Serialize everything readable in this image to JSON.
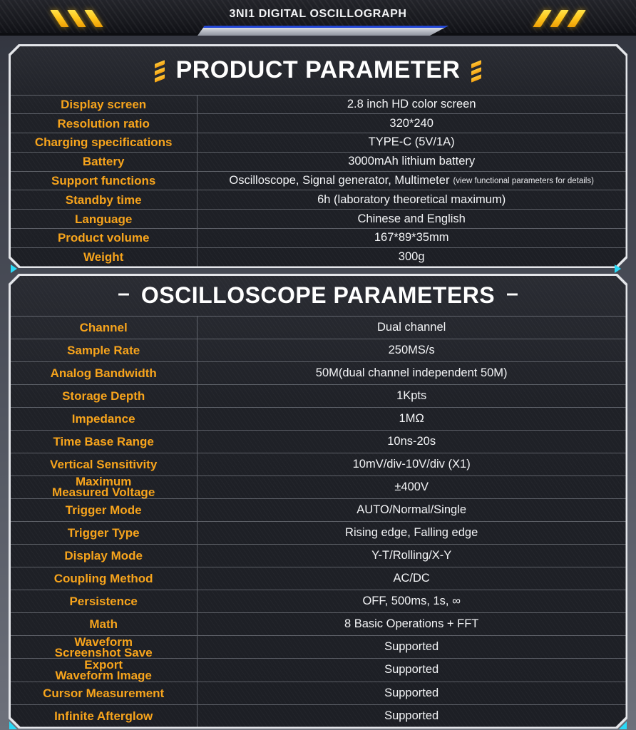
{
  "header": {
    "title": "3NI1 DIGITAL OSCILLOGRAPH"
  },
  "decor": {
    "dash": "–",
    "accent_color": "#29d9f7",
    "label_color": "#f7a41c",
    "hazard_color": "#ffc81e"
  },
  "product_table": {
    "title": "PRODUCT PARAMETER",
    "rows": [
      {
        "label": "Display screen",
        "value": "2.8 inch HD color screen"
      },
      {
        "label": "Resolution ratio",
        "value": "320*240"
      },
      {
        "label": "Charging specifications",
        "value": "TYPE-C (5V/1A)"
      },
      {
        "label": "Battery",
        "value": "3000mAh lithium battery"
      },
      {
        "label": "Support functions",
        "value": "Oscilloscope, Signal generator, Multimeter",
        "note": "(view functional parameters for details)"
      },
      {
        "label": "Standby time",
        "value": "6h (laboratory theoretical maximum)"
      },
      {
        "label": "Language",
        "value": "Chinese and English"
      },
      {
        "label": "Product volume",
        "value": "167*89*35mm"
      },
      {
        "label": "Weight",
        "value": "300g"
      }
    ]
  },
  "oscilloscope_table": {
    "title": "OSCILLOSCOPE PARAMETERS",
    "rows": [
      {
        "label": "Channel",
        "value": "Dual channel"
      },
      {
        "label": "Sample Rate",
        "value": "250MS/s"
      },
      {
        "label": "Analog Bandwidth",
        "value": "50M(dual channel independent 50M)"
      },
      {
        "label": "Storage Depth",
        "value": "1Kpts"
      },
      {
        "label": "Impedance",
        "value": "1MΩ"
      },
      {
        "label": "Time Base Range",
        "value": "10ns-20s"
      },
      {
        "label": "Vertical Sensitivity",
        "value": "10mV/div-10V/div (X1)"
      },
      {
        "label": "Maximum\nMeasured Voltage",
        "value": "±400V"
      },
      {
        "label": "Trigger Mode",
        "value": "AUTO/Normal/Single"
      },
      {
        "label": "Trigger Type",
        "value": "Rising edge, Falling edge"
      },
      {
        "label": "Display Mode",
        "value": "Y-T/Rolling/X-Y"
      },
      {
        "label": "Coupling Method",
        "value": "AC/DC"
      },
      {
        "label": "Persistence",
        "value": "OFF, 500ms, 1s, ∞"
      },
      {
        "label": "Math",
        "value": "8 Basic Operations + FFT"
      },
      {
        "label": "Waveform\nScreenshot Save",
        "value": "Supported"
      },
      {
        "label": "Export\nWaveform Image",
        "value": "Supported"
      },
      {
        "label": "Cursor Measurement",
        "value": "Supported"
      },
      {
        "label": "Infinite Afterglow",
        "value": "Supported"
      }
    ]
  }
}
